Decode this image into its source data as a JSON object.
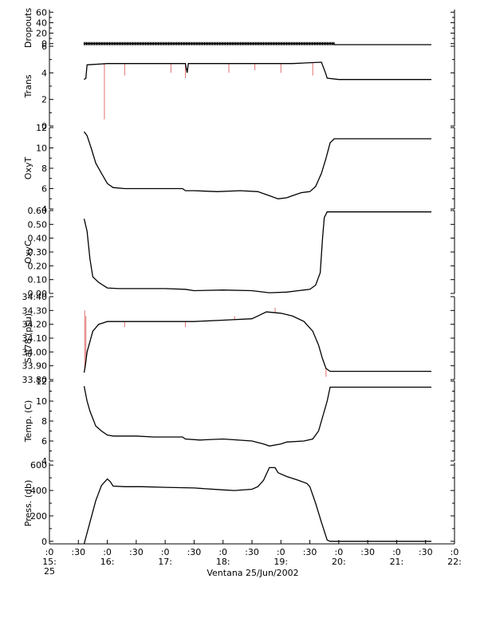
{
  "chart_data": {
    "type": "line",
    "caption": "Ventana 25/Jun/2002",
    "colors": {
      "trace": "#000000",
      "raw_spikes": "#e07070"
    },
    "x_axis": {
      "range_hours": [
        15,
        22
      ],
      "tick_labels": [
        {
          "hour": 15.0,
          "top": ":0",
          "mid": "15:",
          "bottom": "25"
        },
        {
          "hour": 15.5,
          "top": ":30",
          "mid": "",
          "bottom": ""
        },
        {
          "hour": 16.0,
          "top": ":0",
          "mid": "16:",
          "bottom": ""
        },
        {
          "hour": 16.5,
          "top": ":30",
          "mid": "",
          "bottom": ""
        },
        {
          "hour": 17.0,
          "top": ":0",
          "mid": "17:",
          "bottom": ""
        },
        {
          "hour": 17.5,
          "top": ":30",
          "mid": "",
          "bottom": ""
        },
        {
          "hour": 18.0,
          "top": ":0",
          "mid": "18:",
          "bottom": ""
        },
        {
          "hour": 18.5,
          "top": ":30",
          "mid": "",
          "bottom": ""
        },
        {
          "hour": 19.0,
          "top": ":0",
          "mid": "19:",
          "bottom": ""
        },
        {
          "hour": 19.5,
          "top": ":30",
          "mid": "",
          "bottom": ""
        },
        {
          "hour": 20.0,
          "top": ":0",
          "mid": "20:",
          "bottom": ""
        },
        {
          "hour": 20.5,
          "top": ":30",
          "mid": "",
          "bottom": ""
        },
        {
          "hour": 21.0,
          "top": ":0",
          "mid": "21:",
          "bottom": ""
        },
        {
          "hour": 21.5,
          "top": ":30",
          "mid": "",
          "bottom": ""
        },
        {
          "hour": 22.0,
          "top": ":0",
          "mid": "22:",
          "bottom": ""
        }
      ]
    },
    "panels": [
      {
        "id": "dropouts",
        "ylabel": "Dropouts",
        "ylim": [
          -5,
          65
        ],
        "yticks": [
          0,
          20,
          40,
          60
        ],
        "ytick_labels": [
          "0",
          "20",
          "40",
          "60"
        ],
        "minor_yticks": [
          10,
          30,
          50
        ],
        "markers": true,
        "marker_until": 19.92,
        "series": [
          [
            15.6,
            0
          ],
          [
            19.92,
            0
          ],
          [
            19.93,
            -2
          ],
          [
            21.6,
            -2
          ]
        ],
        "spikes": []
      },
      {
        "id": "trans",
        "ylabel": "Trans",
        "ylim": [
          0,
          6
        ],
        "yticks": [
          0,
          2,
          4,
          6
        ],
        "ytick_labels": [
          "0",
          "2",
          "4",
          "6"
        ],
        "minor_yticks": [
          1,
          3,
          5
        ],
        "series": [
          [
            15.6,
            3.5
          ],
          [
            15.63,
            3.6
          ],
          [
            15.65,
            4.6
          ],
          [
            16.0,
            4.7
          ],
          [
            16.5,
            4.7
          ],
          [
            17.0,
            4.7
          ],
          [
            17.35,
            4.7
          ],
          [
            17.38,
            4.0
          ],
          [
            17.4,
            4.7
          ],
          [
            17.8,
            4.7
          ],
          [
            18.3,
            4.7
          ],
          [
            18.8,
            4.7
          ],
          [
            19.2,
            4.7
          ],
          [
            19.7,
            4.8
          ],
          [
            19.77,
            4.0
          ],
          [
            19.8,
            3.6
          ],
          [
            20.0,
            3.5
          ],
          [
            21.6,
            3.5
          ]
        ],
        "spikes": [
          [
            15.95,
            0.5
          ],
          [
            16.3,
            3.8
          ],
          [
            17.1,
            4.0
          ],
          [
            17.35,
            3.6
          ],
          [
            18.1,
            4.0
          ],
          [
            18.55,
            4.2
          ],
          [
            19.0,
            4.0
          ],
          [
            19.55,
            3.8
          ]
        ]
      },
      {
        "id": "oxyt",
        "ylabel": "OxyT",
        "ylim": [
          4,
          12
        ],
        "yticks": [
          4,
          6,
          8,
          10,
          12
        ],
        "ytick_labels": [
          "4",
          "6",
          "8",
          "10",
          "12"
        ],
        "minor_yticks": [
          5,
          7,
          9,
          11
        ],
        "series": [
          [
            15.6,
            11.6
          ],
          [
            15.65,
            11.2
          ],
          [
            15.72,
            10.0
          ],
          [
            15.8,
            8.5
          ],
          [
            15.9,
            7.5
          ],
          [
            16.0,
            6.5
          ],
          [
            16.1,
            6.1
          ],
          [
            16.3,
            6.0
          ],
          [
            16.6,
            6.0
          ],
          [
            17.0,
            6.0
          ],
          [
            17.3,
            6.0
          ],
          [
            17.35,
            5.8
          ],
          [
            17.5,
            5.8
          ],
          [
            17.9,
            5.7
          ],
          [
            18.3,
            5.8
          ],
          [
            18.6,
            5.7
          ],
          [
            18.8,
            5.3
          ],
          [
            18.95,
            5.0
          ],
          [
            19.1,
            5.1
          ],
          [
            19.2,
            5.3
          ],
          [
            19.35,
            5.6
          ],
          [
            19.5,
            5.7
          ],
          [
            19.6,
            6.2
          ],
          [
            19.7,
            7.5
          ],
          [
            19.78,
            9.0
          ],
          [
            19.85,
            10.5
          ],
          [
            19.92,
            10.9
          ],
          [
            21.6,
            10.9
          ]
        ],
        "spikes": []
      },
      {
        "id": "oxyc",
        "ylabel": "OxyC",
        "ylim": [
          0,
          0.6
        ],
        "yticks": [
          0,
          0.1,
          0.2,
          0.3,
          0.4,
          0.5,
          0.6
        ],
        "ytick_labels": [
          "0.00",
          "0.10",
          "0.20",
          "0.30",
          "0.40",
          "0.50",
          "0.60"
        ],
        "minor_yticks": [],
        "series": [
          [
            15.6,
            0.54
          ],
          [
            15.65,
            0.45
          ],
          [
            15.7,
            0.25
          ],
          [
            15.75,
            0.12
          ],
          [
            15.85,
            0.08
          ],
          [
            16.0,
            0.04
          ],
          [
            16.2,
            0.035
          ],
          [
            16.6,
            0.035
          ],
          [
            17.0,
            0.035
          ],
          [
            17.35,
            0.03
          ],
          [
            17.5,
            0.02
          ],
          [
            18.0,
            0.025
          ],
          [
            18.5,
            0.02
          ],
          [
            18.8,
            0.005
          ],
          [
            19.1,
            0.01
          ],
          [
            19.3,
            0.02
          ],
          [
            19.5,
            0.03
          ],
          [
            19.6,
            0.06
          ],
          [
            19.68,
            0.15
          ],
          [
            19.72,
            0.4
          ],
          [
            19.75,
            0.55
          ],
          [
            19.8,
            0.59
          ],
          [
            20.0,
            0.59
          ],
          [
            21.6,
            0.59
          ]
        ],
        "spikes": [
          [
            15.62,
            0.52
          ],
          [
            15.66,
            0.4
          ]
        ]
      },
      {
        "id": "sal78",
        "ylabel": "Sal78 (psu)",
        "ylim": [
          33.8,
          34.4
        ],
        "yticks": [
          33.8,
          33.9,
          34.0,
          34.1,
          34.2,
          34.3,
          34.4
        ],
        "ytick_labels": [
          "33.80",
          "33.90",
          "34.00",
          "34.10",
          "34.20",
          "34.30",
          "34.40"
        ],
        "minor_yticks": [],
        "series": [
          [
            15.6,
            33.85
          ],
          [
            15.62,
            33.9
          ],
          [
            15.65,
            34.0
          ],
          [
            15.75,
            34.15
          ],
          [
            15.85,
            34.2
          ],
          [
            16.0,
            34.22
          ],
          [
            16.5,
            34.22
          ],
          [
            17.0,
            34.22
          ],
          [
            17.5,
            34.22
          ],
          [
            18.0,
            34.23
          ],
          [
            18.5,
            34.24
          ],
          [
            18.6,
            34.26
          ],
          [
            18.75,
            34.29
          ],
          [
            19.0,
            34.28
          ],
          [
            19.2,
            34.26
          ],
          [
            19.4,
            34.22
          ],
          [
            19.55,
            34.15
          ],
          [
            19.65,
            34.05
          ],
          [
            19.72,
            33.95
          ],
          [
            19.78,
            33.88
          ],
          [
            19.85,
            33.86
          ],
          [
            21.6,
            33.86
          ]
        ],
        "spikes": [
          [
            15.61,
            34.3
          ],
          [
            15.63,
            34.26
          ],
          [
            16.3,
            34.18
          ],
          [
            17.35,
            34.18
          ],
          [
            18.2,
            34.26
          ],
          [
            18.9,
            34.32
          ],
          [
            19.78,
            33.82
          ]
        ]
      },
      {
        "id": "temp",
        "ylabel": "Temp. (C)",
        "ylim": [
          4,
          12
        ],
        "yticks": [
          4,
          6,
          8,
          10,
          12
        ],
        "ytick_labels": [
          "4",
          "6",
          "8",
          "10",
          "12"
        ],
        "minor_yticks": [
          5,
          7,
          9,
          11
        ],
        "series": [
          [
            15.6,
            11.5
          ],
          [
            15.65,
            10.0
          ],
          [
            15.7,
            9.0
          ],
          [
            15.8,
            7.5
          ],
          [
            15.9,
            7.0
          ],
          [
            16.0,
            6.6
          ],
          [
            16.1,
            6.5
          ],
          [
            16.5,
            6.5
          ],
          [
            16.8,
            6.4
          ],
          [
            17.0,
            6.4
          ],
          [
            17.3,
            6.4
          ],
          [
            17.35,
            6.2
          ],
          [
            17.6,
            6.1
          ],
          [
            18.0,
            6.2
          ],
          [
            18.5,
            6.0
          ],
          [
            18.7,
            5.7
          ],
          [
            18.8,
            5.5
          ],
          [
            19.0,
            5.7
          ],
          [
            19.1,
            5.9
          ],
          [
            19.4,
            6.0
          ],
          [
            19.55,
            6.2
          ],
          [
            19.65,
            7.0
          ],
          [
            19.75,
            9.0
          ],
          [
            19.8,
            10.0
          ],
          [
            19.85,
            11.4
          ],
          [
            21.6,
            11.4
          ]
        ],
        "spikes": []
      },
      {
        "id": "press",
        "ylabel": "Press. (db)",
        "ylim": [
          -20,
          620
        ],
        "yticks": [
          0,
          200,
          400,
          600
        ],
        "ytick_labels": [
          "0",
          "200",
          "400",
          "600"
        ],
        "minor_yticks": [
          100,
          300,
          500
        ],
        "series": [
          [
            15.6,
            -20
          ],
          [
            15.7,
            150
          ],
          [
            15.8,
            320
          ],
          [
            15.9,
            440
          ],
          [
            16.0,
            490
          ],
          [
            16.05,
            470
          ],
          [
            16.1,
            435
          ],
          [
            16.3,
            430
          ],
          [
            16.6,
            430
          ],
          [
            17.0,
            425
          ],
          [
            17.5,
            420
          ],
          [
            18.0,
            405
          ],
          [
            18.2,
            400
          ],
          [
            18.5,
            410
          ],
          [
            18.6,
            430
          ],
          [
            18.7,
            480
          ],
          [
            18.8,
            580
          ],
          [
            18.9,
            580
          ],
          [
            18.95,
            540
          ],
          [
            19.1,
            510
          ],
          [
            19.3,
            480
          ],
          [
            19.45,
            455
          ],
          [
            19.5,
            430
          ],
          [
            19.6,
            300
          ],
          [
            19.7,
            150
          ],
          [
            19.8,
            10
          ],
          [
            19.85,
            0
          ],
          [
            21.6,
            0
          ]
        ],
        "spikes": []
      }
    ]
  }
}
